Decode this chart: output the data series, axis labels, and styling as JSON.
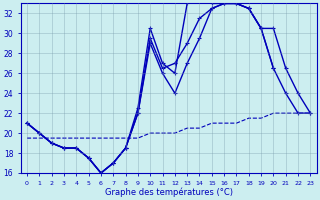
{
  "xlabel": "Graphe des températures (°C)",
  "background_color": "#cceef0",
  "line_color": "#0000bb",
  "ylim": [
    16,
    33
  ],
  "xlim": [
    -0.5,
    23.5
  ],
  "yticks": [
    16,
    18,
    20,
    22,
    24,
    26,
    28,
    30,
    32
  ],
  "xticks": [
    0,
    1,
    2,
    3,
    4,
    5,
    6,
    7,
    8,
    9,
    10,
    11,
    12,
    13,
    14,
    15,
    16,
    17,
    18,
    19,
    20,
    21,
    22,
    23
  ],
  "series": [
    {
      "x": [
        0,
        1,
        2,
        3,
        4,
        5,
        6,
        7,
        8,
        9,
        10,
        11,
        12,
        13,
        14,
        15,
        16,
        17,
        18,
        19,
        20,
        21,
        22,
        23
      ],
      "y": [
        21.0,
        20.0,
        19.0,
        18.5,
        18.5,
        17.5,
        16.0,
        17.0,
        18.5,
        22.0,
        29.5,
        26.5,
        27.0,
        29.0,
        31.5,
        32.5,
        33.0,
        33.0,
        32.5,
        30.5,
        30.5,
        26.5,
        24.0,
        22.0
      ],
      "marker": "+",
      "linestyle": "-",
      "linewidth": 1.0
    },
    {
      "x": [
        0,
        1,
        2,
        3,
        4,
        5,
        6,
        7,
        8,
        9,
        10,
        11,
        12,
        13,
        14,
        15,
        16,
        17,
        18,
        19,
        20,
        21,
        22,
        23
      ],
      "y": [
        21.0,
        20.0,
        19.0,
        18.5,
        18.5,
        17.5,
        16.0,
        17.0,
        18.5,
        22.5,
        30.5,
        27.0,
        26.0,
        33.0,
        33.5,
        33.0,
        33.0,
        33.0,
        32.5,
        30.5,
        26.5,
        24.0,
        22.0,
        22.0
      ],
      "marker": "+",
      "linestyle": "-",
      "linewidth": 1.0
    },
    {
      "x": [
        0,
        1,
        2,
        3,
        4,
        5,
        6,
        7,
        8,
        9,
        10,
        11,
        12,
        13,
        14,
        15,
        16,
        17,
        18,
        19,
        20,
        21,
        22,
        23
      ],
      "y": [
        21.0,
        20.0,
        19.0,
        18.5,
        18.5,
        17.5,
        16.0,
        17.0,
        18.5,
        22.0,
        29.0,
        26.0,
        24.0,
        27.0,
        29.5,
        32.5,
        33.0,
        33.0,
        32.5,
        30.5,
        26.5,
        null,
        null,
        null
      ],
      "marker": "+",
      "linestyle": "-",
      "linewidth": 1.0
    },
    {
      "x": [
        0,
        1,
        2,
        3,
        4,
        5,
        6,
        7,
        8,
        9,
        10,
        11,
        12,
        13,
        14,
        15,
        16,
        17,
        18,
        19,
        20,
        21,
        22,
        23
      ],
      "y": [
        19.5,
        19.5,
        19.5,
        19.5,
        19.5,
        19.5,
        19.5,
        19.5,
        19.5,
        19.5,
        20.0,
        20.0,
        20.0,
        20.5,
        20.5,
        21.0,
        21.0,
        21.0,
        21.5,
        21.5,
        22.0,
        22.0,
        22.0,
        22.0
      ],
      "marker": null,
      "linestyle": "--",
      "linewidth": 0.8
    }
  ]
}
